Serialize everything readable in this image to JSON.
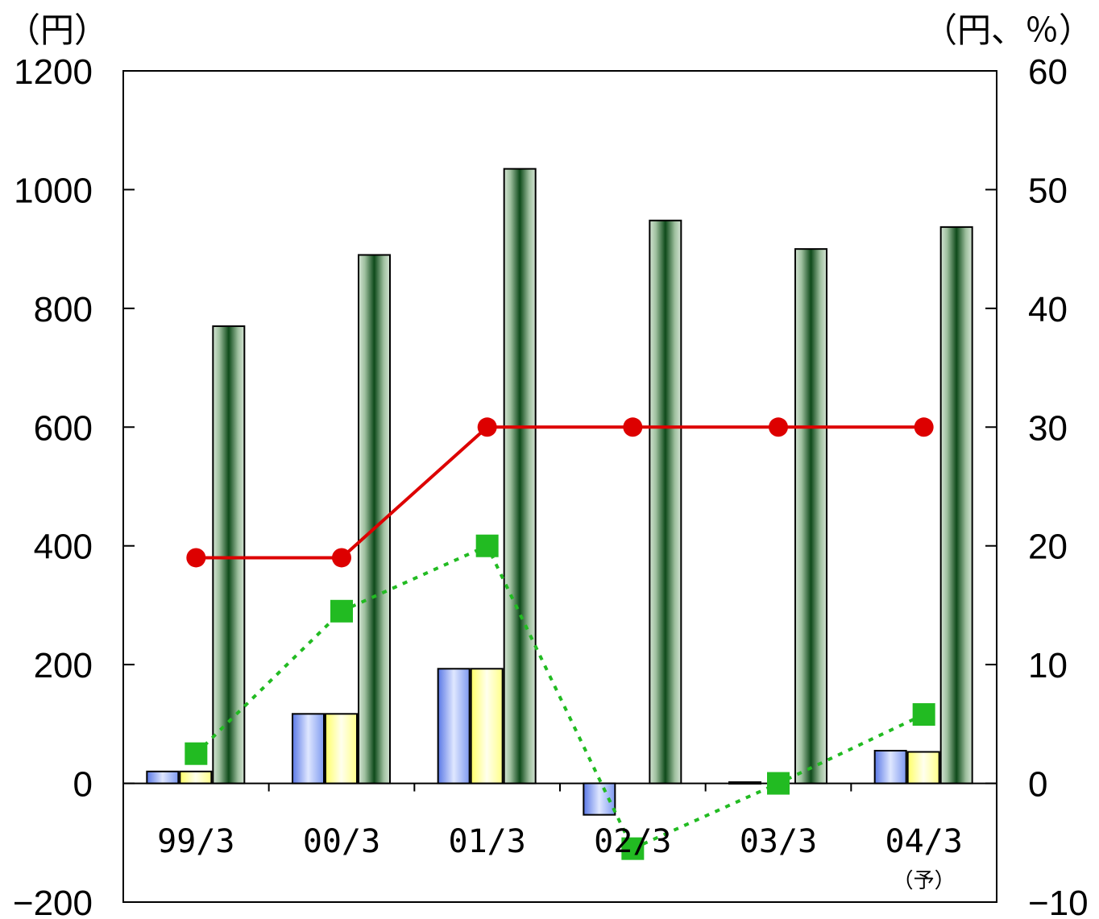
{
  "chart_data": {
    "type": "bar",
    "categories": [
      "99/3",
      "00/3",
      "01/3",
      "02/3",
      "03/3",
      "04/3"
    ],
    "category_note": "（予）",
    "left_axis": {
      "unit": "（円）",
      "ylim": [
        -200,
        1200
      ],
      "ticks": [
        -200,
        0,
        200,
        400,
        600,
        800,
        1000,
        1200
      ],
      "tick_labels": [
        "−200",
        "0",
        "200",
        "400",
        "600",
        "800",
        "1000",
        "1200"
      ]
    },
    "right_axis": {
      "unit": "（円、％）",
      "ylim": [
        -10,
        60
      ],
      "ticks": [
        -10,
        0,
        10,
        20,
        30,
        40,
        50,
        60
      ],
      "tick_labels": [
        "−10",
        "0",
        "10",
        "20",
        "30",
        "40",
        "50",
        "60"
      ]
    },
    "series": [
      {
        "kind": "bar",
        "axis": "left",
        "color": "#8fa8f0",
        "values": [
          20,
          117,
          193,
          -53,
          2,
          55
        ]
      },
      {
        "kind": "bar",
        "axis": "left",
        "color": "#ffff99",
        "values": [
          20,
          117,
          193,
          0,
          0,
          53
        ]
      },
      {
        "kind": "bar",
        "axis": "left",
        "color": "#2e6b36",
        "values": [
          770,
          890,
          1035,
          948,
          900,
          937
        ]
      },
      {
        "kind": "line",
        "axis": "right",
        "color": "#dd0000",
        "style": "solid",
        "marker": "circle",
        "values": [
          19,
          19,
          30,
          30,
          30,
          30
        ]
      },
      {
        "kind": "line",
        "axis": "right",
        "color": "#22bb22",
        "style": "dotted",
        "marker": "square",
        "values": [
          2.5,
          14.5,
          20,
          -5.5,
          0,
          5.8
        ]
      }
    ],
    "grid": false,
    "legend": "none"
  }
}
